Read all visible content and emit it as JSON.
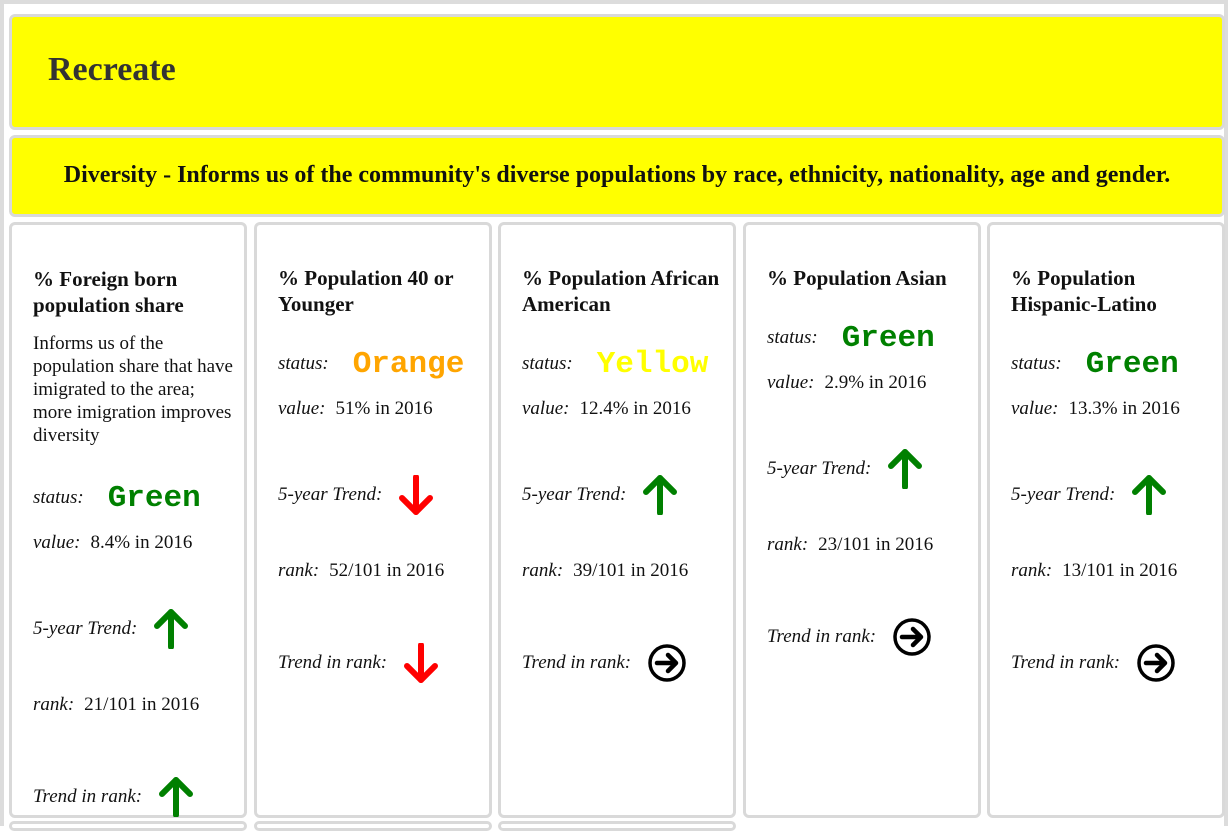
{
  "page": {
    "title": "Recreate",
    "category": "Diversity - Informs us of the community's diverse populations by race, ethnicity, nationality, age and gender."
  },
  "labels": {
    "status": "status:",
    "value": "value:",
    "trend": "5-year Trend:",
    "rank": "rank:",
    "trend_rank": "Trend in rank:"
  },
  "colors": {
    "Green": "#008000",
    "Orange": "#ffa500",
    "Yellow": "#ffff00",
    "banner": "#ffff00",
    "up_arrow": "#008000",
    "down_arrow": "#ff0000",
    "neutral": "#000000"
  },
  "cards": [
    {
      "title": "% Foreign born population share",
      "description": "Informs us of the population share that have imigrated to the area; more imigration improves diversity",
      "status": "Green",
      "value": "8.4% in 2016",
      "trend_icon": "up-arrow-icon",
      "rank": "21/101 in 2016",
      "trend_rank_icon": "up-arrow-icon"
    },
    {
      "title": "% Population 40 or Younger",
      "description": "",
      "status": "Orange",
      "value": "51% in 2016",
      "trend_icon": "down-arrow-icon",
      "rank": "52/101 in 2016",
      "trend_rank_icon": "down-arrow-icon"
    },
    {
      "title": "% Population African American",
      "description": "",
      "status": "Yellow",
      "value": "12.4% in 2016",
      "trend_icon": "up-arrow-icon",
      "rank": "39/101 in 2016",
      "trend_rank_icon": "circle-arrow-right-icon"
    },
    {
      "title": "% Population Asian",
      "description": "",
      "status": "Green",
      "value": "2.9% in 2016",
      "trend_icon": "up-arrow-icon",
      "rank": "23/101 in 2016",
      "trend_rank_icon": "circle-arrow-right-icon"
    },
    {
      "title": "% Population Hispanic-Latino",
      "description": "",
      "status": "Green",
      "value": "13.3% in 2016",
      "trend_icon": "up-arrow-icon",
      "rank": "13/101 in 2016",
      "trend_rank_icon": "circle-arrow-right-icon"
    }
  ]
}
